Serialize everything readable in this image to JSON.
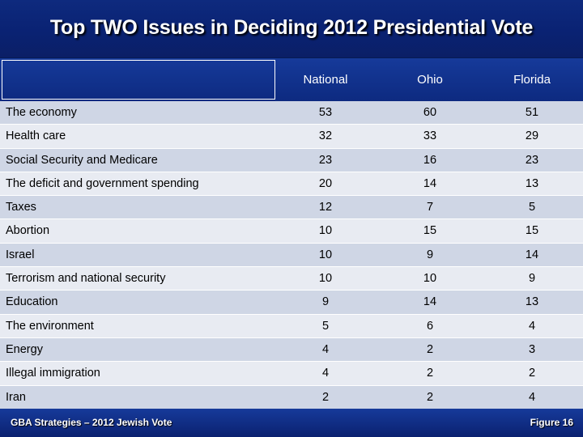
{
  "title": "Top TWO Issues in Deciding 2012 Presidential Vote",
  "columns": [
    "National",
    "Ohio",
    "Florida"
  ],
  "rows": [
    {
      "label": "The economy",
      "values": [
        "53",
        "60",
        "51"
      ]
    },
    {
      "label": "Health care",
      "values": [
        "32",
        "33",
        "29"
      ]
    },
    {
      "label": "Social Security and Medicare",
      "values": [
        "23",
        "16",
        "23"
      ]
    },
    {
      "label": "The deficit and government spending",
      "values": [
        "20",
        "14",
        "13"
      ]
    },
    {
      "label": "Taxes",
      "values": [
        "12",
        "7",
        "5"
      ]
    },
    {
      "label": "Abortion",
      "values": [
        "10",
        "15",
        "15"
      ]
    },
    {
      "label": "Israel",
      "values": [
        "10",
        "9",
        "14"
      ]
    },
    {
      "label": "Terrorism and national security",
      "values": [
        "10",
        "10",
        "9"
      ]
    },
    {
      "label": "Education",
      "values": [
        "9",
        "14",
        "13"
      ]
    },
    {
      "label": "The environment",
      "values": [
        "5",
        "6",
        "4"
      ]
    },
    {
      "label": "Energy",
      "values": [
        "4",
        "2",
        "3"
      ]
    },
    {
      "label": "Illegal immigration",
      "values": [
        "4",
        "2",
        "2"
      ]
    },
    {
      "label": "Iran",
      "values": [
        "2",
        "2",
        "4"
      ]
    }
  ],
  "footer": {
    "left": "GBA Strategies – 2012 Jewish Vote",
    "right": "Figure 16"
  },
  "colors": {
    "header_blue": "#0d2a80",
    "row_dark": "#cfd6e5",
    "row_light": "#e8ebf2"
  }
}
